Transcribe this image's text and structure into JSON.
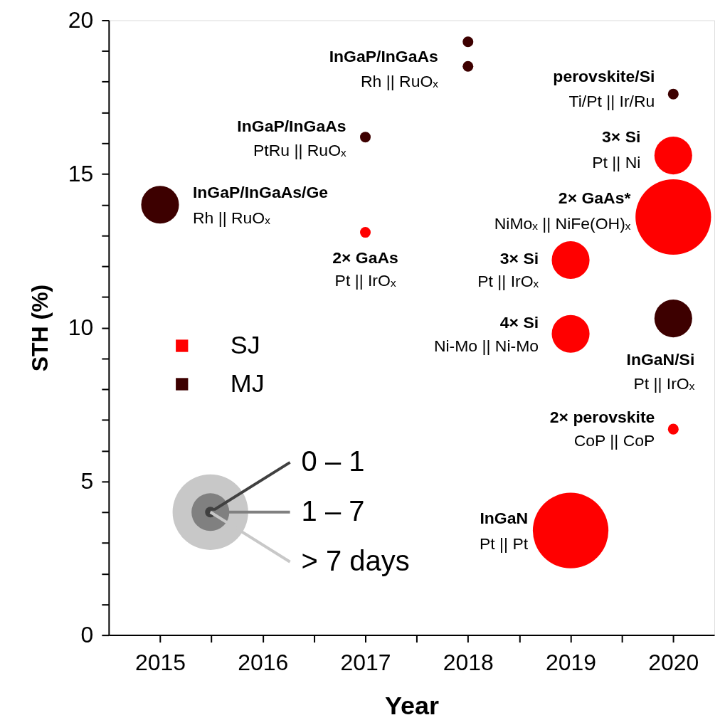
{
  "chart_data": {
    "type": "bubble",
    "xlabel": "Year",
    "ylabel": "STH (%)",
    "xlim": [
      2014.5,
      2020.4
    ],
    "ylim": [
      0,
      20
    ],
    "xticks": [
      2015,
      {
        "value": 2015.5,
        "label": null
      },
      2016,
      {
        "value": 2016.5,
        "label": null
      },
      2017,
      {
        "value": 2017.5,
        "label": null
      },
      2018,
      {
        "value": 2018.5,
        "label": null
      },
      2019,
      {
        "value": 2019.5,
        "label": null
      },
      2020
    ],
    "yticks": [
      0,
      {
        "value": 1,
        "label": null
      },
      {
        "value": 2,
        "label": null
      },
      {
        "value": 3,
        "label": null
      },
      {
        "value": 4,
        "label": null
      },
      5,
      {
        "value": 6,
        "label": null
      },
      {
        "value": 7,
        "label": null
      },
      {
        "value": 8,
        "label": null
      },
      {
        "value": 9,
        "label": null
      },
      10,
      {
        "value": 11,
        "label": null
      },
      {
        "value": 12,
        "label": null
      },
      {
        "value": 13,
        "label": null
      },
      {
        "value": 14,
        "label": null
      },
      15,
      {
        "value": 16,
        "label": null
      },
      {
        "value": 17,
        "label": null
      },
      {
        "value": 18,
        "label": null
      },
      {
        "value": 19,
        "label": null
      },
      20
    ],
    "grid": false,
    "legend": "left",
    "size_legend": [
      {
        "value": 0.02,
        "label": "0 – 1"
      },
      {
        "value": 0.25,
        "label": "1 – 7"
      },
      {
        "value": 1,
        "label": "> 7 days"
      }
    ],
    "series": [
      {
        "name": "SJ",
        "color": "#ff0000",
        "x": [
          2017,
          2019,
          2019,
          2019,
          2020,
          2020,
          2020
        ],
        "values": [
          13.1,
          12.2,
          9.8,
          3.4,
          15.6,
          13.6,
          6.7
        ],
        "sizes": [
          0.02,
          0.25,
          0.25,
          1,
          0.25,
          1,
          0.02
        ]
      },
      {
        "name": "MJ",
        "color": "#3d0000",
        "x": [
          2015,
          2017,
          2018,
          2018,
          2020,
          2020
        ],
        "values": [
          14.0,
          16.2,
          19.3,
          18.5,
          17.6,
          10.3
        ],
        "sizes": [
          0.25,
          0.02,
          0.02,
          0.02,
          0.02,
          0.25
        ]
      }
    ],
    "annotations": [
      {
        "text": "InGaP/InGaAs/Ge\nRh || RuOₓ",
        "x": 2015,
        "y": 14.0
      },
      {
        "text": "InGaP/InGaAs\nPtRu || RuOₓ",
        "x": 2017,
        "y": 16.2
      },
      {
        "text": "2× GaAs\nPt || IrOₓ",
        "x": 2017,
        "y": 13.1
      },
      {
        "text": "InGaP/InGaAs\nRh || RuOₓ",
        "x": 2018,
        "y": 19.3
      },
      {
        "text": "perovskite/Si\nTi/Pt || Ir/Ru",
        "x": 2020,
        "y": 17.6
      },
      {
        "text": "3× Si\nPt || Ni",
        "x": 2020,
        "y": 15.6
      },
      {
        "text": "2× GaAs*\nNiMoₓ || NiFe(OH)ₓ",
        "x": 2020,
        "y": 13.6
      },
      {
        "text": "3× Si\nPt || IrOₓ",
        "x": 2019,
        "y": 12.2
      },
      {
        "text": "4× Si\nNi-Mo || Ni-Mo",
        "x": 2019,
        "y": 9.8
      },
      {
        "text": "InGaN/Si\nPt || IrOₓ",
        "x": 2020,
        "y": 10.3
      },
      {
        "text": "2× perovskite\nCoP || CoP",
        "x": 2020,
        "y": 6.7
      },
      {
        "text": "InGaN\nPt || Pt",
        "x": 2019,
        "y": 3.4
      }
    ]
  }
}
